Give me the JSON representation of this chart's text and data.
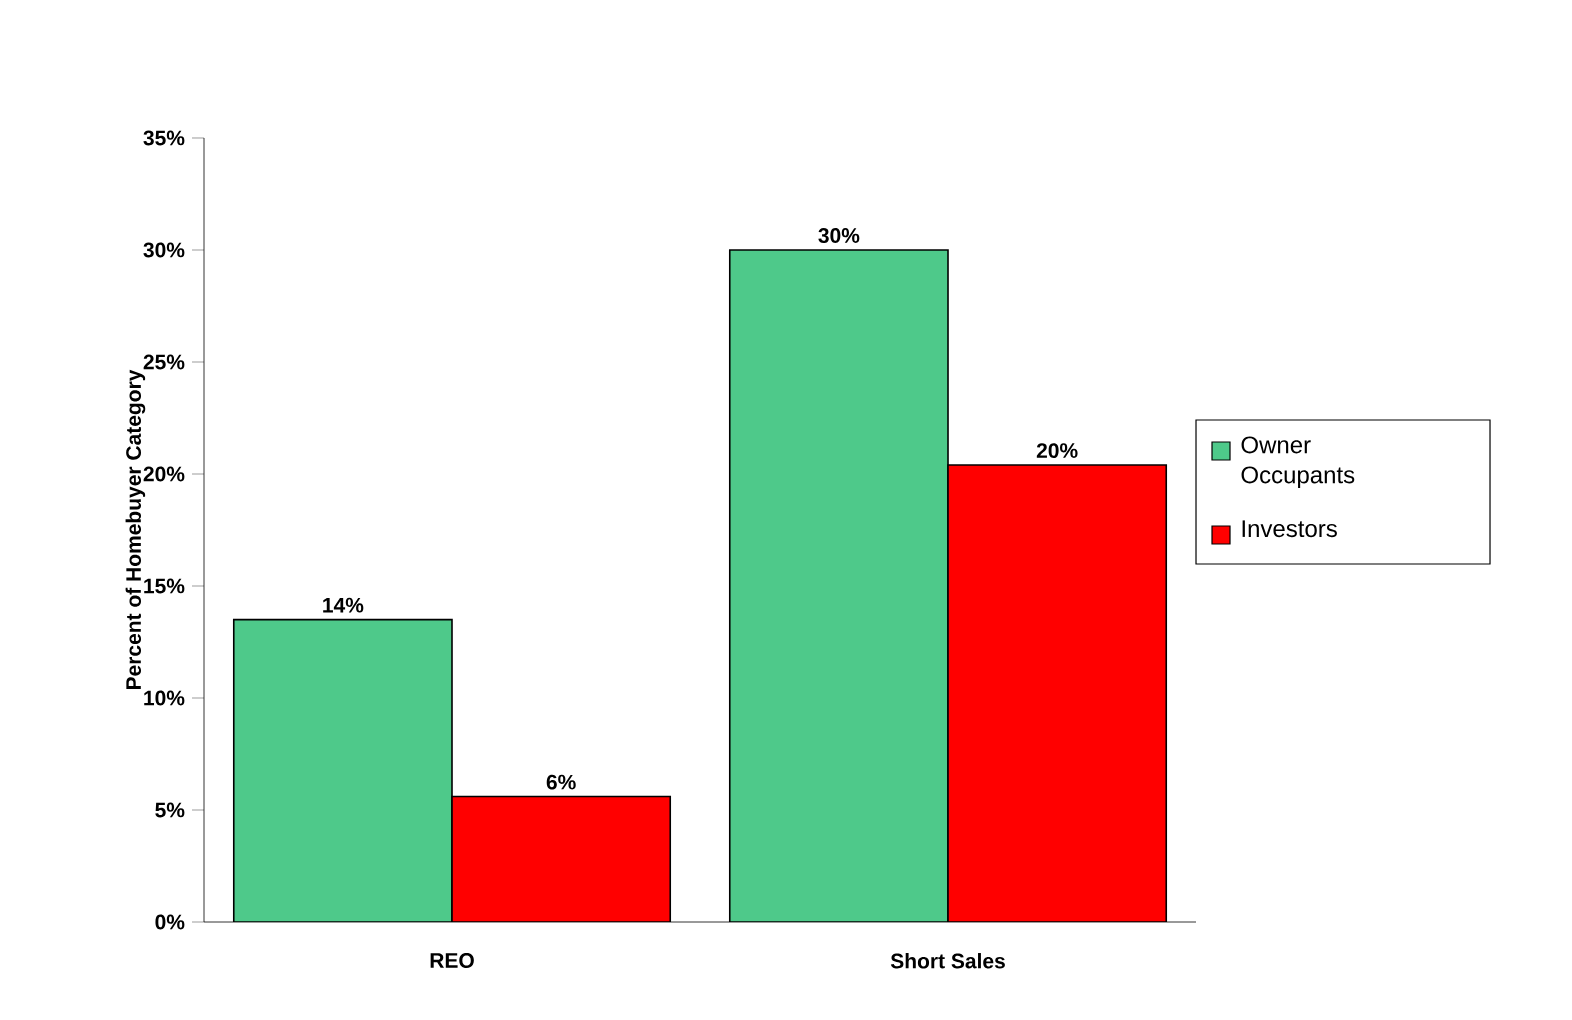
{
  "chart_data": {
    "type": "bar",
    "ylabel": "Percent  of Homebuyer Category",
    "categories": [
      "REO",
      "Short Sales"
    ],
    "series": [
      {
        "name": "Owner Occupants",
        "color": "#4ec98a",
        "values": [
          13.5,
          30.0
        ],
        "value_labels": [
          "14%",
          "30%"
        ]
      },
      {
        "name": "Investors",
        "color": "#ff0000",
        "values": [
          5.6,
          20.4
        ],
        "value_labels": [
          "6%",
          "20%"
        ]
      }
    ],
    "ylim": [
      0,
      35
    ],
    "yticks": [
      {
        "value": 0,
        "label": "0%"
      },
      {
        "value": 5,
        "label": "5%"
      },
      {
        "value": 10,
        "label": "10%"
      },
      {
        "value": 15,
        "label": "15%"
      },
      {
        "value": 20,
        "label": "20%"
      },
      {
        "value": 25,
        "label": "25%"
      },
      {
        "value": 30,
        "label": "30%"
      },
      {
        "value": 35,
        "label": "35%"
      }
    ],
    "legend": "right",
    "grid": false
  }
}
